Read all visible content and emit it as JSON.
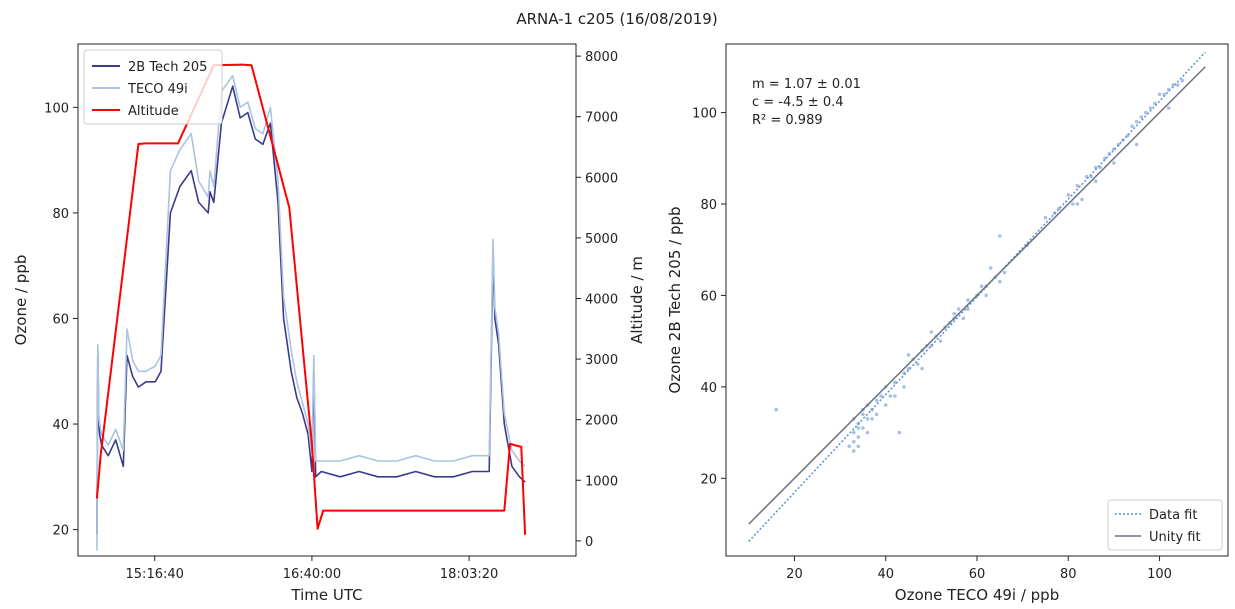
{
  "figure": {
    "title": "ARNA-1 c205 (16/08/2019)"
  },
  "chart_data": [
    {
      "type": "line",
      "panel": "left",
      "xlabel": "Time UTC",
      "ylabel": "Ozone / ppb",
      "y2label": "Altitude / m",
      "xlim": [
        "14:36:00",
        "19:00:00"
      ],
      "ylim": [
        15,
        112
      ],
      "y2lim": [
        -250,
        8200
      ],
      "xticks": [
        "15:16:40",
        "16:40:00",
        "18:03:20"
      ],
      "yticks": [
        20,
        40,
        60,
        80,
        100
      ],
      "y2ticks": [
        0,
        1000,
        2000,
        3000,
        4000,
        5000,
        6000,
        7000,
        8000
      ],
      "grid": false,
      "legend": {
        "position": "top-left",
        "entries": [
          "2B Tech 205",
          "TECO 49i",
          "Altitude"
        ]
      },
      "series": [
        {
          "name": "2B Tech 205",
          "axis": "left",
          "color": "#3b3b8c",
          "x": [
            "14:46:00",
            "14:46:30",
            "14:47:00",
            "14:47:30",
            "14:48:30",
            "14:52:00",
            "14:56:00",
            "15:00:00",
            "15:02:00",
            "15:05:00",
            "15:08:00",
            "15:12:00",
            "15:17:00",
            "15:20:00",
            "15:25:00",
            "15:30:00",
            "15:36:00",
            "15:40:00",
            "15:45:00",
            "15:46:00",
            "15:48:00",
            "15:52:00",
            "15:58:00",
            "16:02:00",
            "16:06:00",
            "16:10:00",
            "16:14:00",
            "16:18:00",
            "16:22:00",
            "16:25:00",
            "16:29:00",
            "16:32:00",
            "16:35:00",
            "16:38:00",
            "16:40:00",
            "16:41:00",
            "16:42:00",
            "16:45:00",
            "16:55:00",
            "17:05:00",
            "17:15:00",
            "17:25:00",
            "17:35:00",
            "17:45:00",
            "17:55:00",
            "18:05:00",
            "18:10:00",
            "18:14:00",
            "18:16:00",
            "18:17:00",
            "18:19:00",
            "18:22:00",
            "18:26:00",
            "18:30:00",
            "18:33:00"
          ],
          "values": [
            19,
            54,
            40,
            38,
            36,
            34,
            37,
            32,
            53,
            49,
            47,
            48,
            48,
            50,
            80,
            85,
            88,
            82,
            80,
            84,
            82,
            97,
            104,
            98,
            99,
            94,
            93,
            97,
            82,
            60,
            50,
            45,
            42,
            38,
            31,
            50,
            30,
            31,
            30,
            31,
            30,
            30,
            31,
            30,
            30,
            31,
            31,
            31,
            72,
            60,
            55,
            40,
            32,
            30,
            29
          ]
        },
        {
          "name": "TECO 49i",
          "axis": "left",
          "color": "#aac4e4",
          "x": [
            "14:46:00",
            "14:46:30",
            "14:47:00",
            "14:47:30",
            "14:48:30",
            "14:52:00",
            "14:56:00",
            "15:00:00",
            "15:02:00",
            "15:05:00",
            "15:08:00",
            "15:12:00",
            "15:17:00",
            "15:20:00",
            "15:25:00",
            "15:30:00",
            "15:36:00",
            "15:40:00",
            "15:45:00",
            "15:46:00",
            "15:48:00",
            "15:52:00",
            "15:58:00",
            "16:02:00",
            "16:06:00",
            "16:10:00",
            "16:14:00",
            "16:18:00",
            "16:22:00",
            "16:25:00",
            "16:29:00",
            "16:32:00",
            "16:35:00",
            "16:38:00",
            "16:40:00",
            "16:41:00",
            "16:42:00",
            "16:45:00",
            "16:55:00",
            "17:05:00",
            "17:15:00",
            "17:25:00",
            "17:35:00",
            "17:45:00",
            "17:55:00",
            "18:05:00",
            "18:10:00",
            "18:14:00",
            "18:16:00",
            "18:17:00",
            "18:19:00",
            "18:22:00",
            "18:26:00",
            "18:30:00",
            "18:33:00"
          ],
          "values": [
            16,
            55,
            42,
            40,
            38,
            36,
            39,
            35,
            58,
            52,
            50,
            50,
            51,
            53,
            88,
            92,
            95,
            86,
            83,
            88,
            85,
            103,
            106,
            100,
            101,
            96,
            95,
            100,
            86,
            64,
            54,
            48,
            44,
            40,
            34,
            53,
            33,
            33,
            33,
            34,
            33,
            33,
            34,
            33,
            33,
            34,
            34,
            34,
            75,
            62,
            57,
            42,
            35,
            33,
            32
          ]
        },
        {
          "name": "Altitude",
          "axis": "right",
          "color": "#ff0000",
          "x": [
            "14:46:00",
            "14:48:00",
            "15:08:00",
            "15:12:00",
            "15:29:00",
            "15:48:00",
            "16:03:00",
            "16:08:00",
            "16:28:00",
            "16:40:00",
            "16:43:00",
            "16:46:00",
            "17:40:00",
            "18:09:00",
            "18:12:00",
            "18:22:00",
            "18:25:00",
            "18:31:00",
            "18:33:00"
          ],
          "values": [
            700,
            1400,
            6550,
            6560,
            6560,
            7850,
            7860,
            7850,
            5500,
            1600,
            200,
            500,
            500,
            500,
            500,
            500,
            1600,
            1550,
            100
          ]
        }
      ]
    },
    {
      "type": "scatter",
      "panel": "right",
      "xlabel": "Ozone TECO 49i / ppb",
      "ylabel": "Ozone 2B Tech 205 / ppb",
      "xlim": [
        5,
        115
      ],
      "ylim": [
        3,
        115
      ],
      "xticks": [
        20,
        40,
        60,
        80,
        100
      ],
      "yticks": [
        20,
        40,
        60,
        80,
        100
      ],
      "grid": false,
      "annotations": [
        "m = 1.07 ± 0.01",
        "c = -4.5 ± 0.4",
        "R² = 0.989"
      ],
      "legend": {
        "position": "bottom-right",
        "entries": [
          "Data fit",
          "Unity fit"
        ]
      },
      "points_color": "#a9c1e0",
      "points": [
        [
          33,
          30
        ],
        [
          34,
          32
        ],
        [
          35,
          31
        ],
        [
          33,
          28
        ],
        [
          34,
          29
        ],
        [
          32,
          27
        ],
        [
          35,
          34
        ],
        [
          36,
          33
        ],
        [
          34,
          31
        ],
        [
          33,
          33
        ],
        [
          36,
          36
        ],
        [
          35,
          35
        ],
        [
          37,
          35
        ],
        [
          38,
          37
        ],
        [
          37,
          33
        ],
        [
          39,
          38
        ],
        [
          40,
          40
        ],
        [
          41,
          38
        ],
        [
          42,
          41
        ],
        [
          44,
          43
        ],
        [
          45,
          44
        ],
        [
          46,
          46
        ],
        [
          47,
          45
        ],
        [
          48,
          48
        ],
        [
          49,
          49
        ],
        [
          50,
          49
        ],
        [
          51,
          51
        ],
        [
          52,
          50
        ],
        [
          53,
          53
        ],
        [
          54,
          54
        ],
        [
          55,
          55
        ],
        [
          56,
          57
        ],
        [
          57,
          55
        ],
        [
          60,
          60
        ],
        [
          62,
          62
        ],
        [
          64,
          64
        ],
        [
          65,
          63
        ],
        [
          66,
          65
        ],
        [
          65,
          73
        ],
        [
          16,
          35
        ],
        [
          78,
          79
        ],
        [
          80,
          82
        ],
        [
          81,
          80
        ],
        [
          82,
          84
        ],
        [
          83,
          81
        ],
        [
          84,
          86
        ],
        [
          85,
          86
        ],
        [
          86,
          88
        ],
        [
          87,
          88
        ],
        [
          88,
          90
        ],
        [
          89,
          91
        ],
        [
          90,
          92
        ],
        [
          91,
          93
        ],
        [
          92,
          94
        ],
        [
          93,
          95
        ],
        [
          94,
          97
        ],
        [
          95,
          98
        ],
        [
          96,
          99
        ],
        [
          97,
          100
        ],
        [
          98,
          101
        ],
        [
          99,
          102
        ],
        [
          100,
          104
        ],
        [
          101,
          104
        ],
        [
          102,
          105
        ],
        [
          103,
          106
        ],
        [
          104,
          106
        ],
        [
          105,
          107
        ],
        [
          102,
          101
        ],
        [
          95,
          93
        ],
        [
          90,
          89
        ],
        [
          86,
          85
        ],
        [
          82,
          80
        ],
        [
          48,
          44
        ],
        [
          44,
          40
        ],
        [
          42,
          38
        ],
        [
          40,
          36
        ],
        [
          38,
          34
        ],
        [
          36,
          30
        ],
        [
          34,
          27
        ],
        [
          33,
          26
        ],
        [
          45,
          47
        ],
        [
          50,
          52
        ],
        [
          55,
          56
        ],
        [
          58,
          59
        ],
        [
          61,
          62
        ],
        [
          63,
          66
        ],
        [
          58,
          57
        ],
        [
          62,
          60
        ],
        [
          75,
          77
        ],
        [
          77,
          78
        ],
        [
          71,
          71
        ],
        [
          43,
          30
        ]
      ],
      "series": [
        {
          "name": "Data fit",
          "style": "dotted",
          "color": "#5b8fd6",
          "x": [
            10,
            110
          ],
          "values": [
            6.2,
            113.2
          ]
        },
        {
          "name": "Unity fit",
          "style": "solid",
          "color": "#6b7280",
          "x": [
            10,
            110
          ],
          "values": [
            10,
            110
          ]
        }
      ]
    }
  ]
}
